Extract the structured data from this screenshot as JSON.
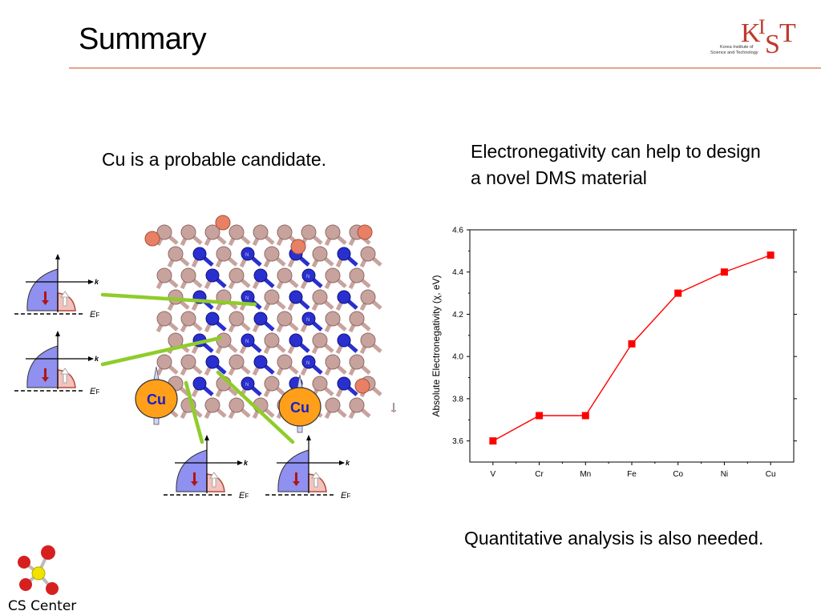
{
  "slide": {
    "title": "Summary",
    "left_caption": "Cu is a probable candidate.",
    "right_caption": "Electronegativity can help to design a novel DMS material",
    "bottom_caption": "Quantitative analysis is also needed."
  },
  "logos": {
    "kist_subtitle": [
      "Korea Institute of",
      "Science and Technology"
    ],
    "cs_center": "CS Center"
  },
  "illustration": {
    "dopant_label": "Cu",
    "band_k_label": "k",
    "band_ef_label": "E",
    "band_ef_sub": "F",
    "atom_label": "N"
  },
  "chart_data": {
    "type": "line",
    "categories": [
      "V",
      "Cr",
      "Mn",
      "Fe",
      "Co",
      "Ni",
      "Cu"
    ],
    "series": [
      {
        "values": [
          3.6,
          3.72,
          3.72,
          4.06,
          4.3,
          4.4,
          4.48
        ]
      }
    ],
    "xlabel": "",
    "ylabel": "Absolute Electronegativity (χ, eV)",
    "ylim": [
      3.5,
      4.6
    ],
    "yticks": [
      3.6,
      3.8,
      4.0,
      4.2,
      4.4,
      4.6
    ],
    "grid": false,
    "color": "#ff0000"
  }
}
